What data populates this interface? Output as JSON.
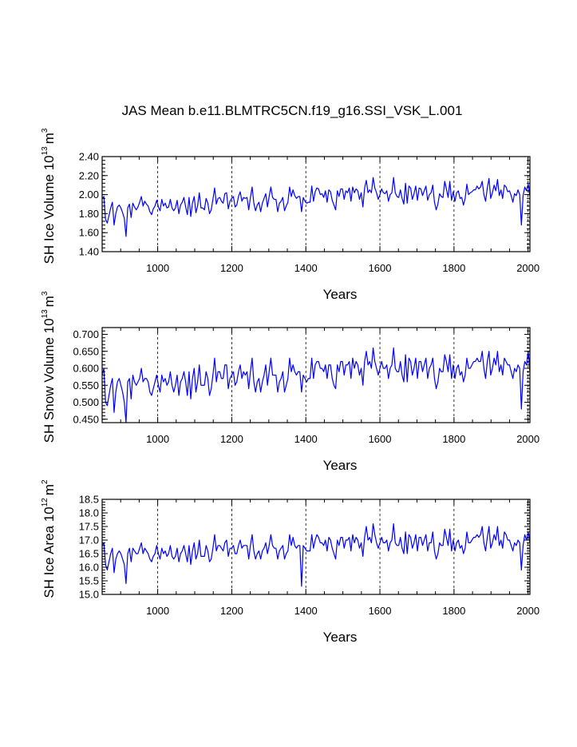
{
  "title": "JAS Mean b.e11.BLMTRC5CN.f19_g16.SSI_VSK_L.001",
  "chart_data": [
    {
      "type": "line",
      "ylabel": "SH Ice Volume",
      "ylabel_unit_base": "10",
      "ylabel_unit_exp": "13",
      "ylabel_unit_m": "m",
      "ylabel_unit_m_exp": "3",
      "xlabel": "Years",
      "xlim": [
        850,
        2005
      ],
      "ylim": [
        1.4,
        2.4
      ],
      "xticks": [
        "1000",
        "1200",
        "1400",
        "1600",
        "1800",
        "2000"
      ],
      "yticks": [
        "1.40",
        "1.60",
        "1.80",
        "2.00",
        "2.20",
        "2.40"
      ],
      "grid_x": true,
      "series_color": "#0000ff",
      "series": [
        {
          "name": "SH Ice Volume",
          "x_start": 850,
          "x_end": 2005,
          "values": [
            1.96,
            1.98,
            1.74,
            1.7,
            1.78,
            1.86,
            1.92,
            1.68,
            1.8,
            1.87,
            1.89,
            1.86,
            1.81,
            1.75,
            1.56,
            1.86,
            1.9,
            1.76,
            1.91,
            1.87,
            1.84,
            1.87,
            1.92,
            1.98,
            1.88,
            1.93,
            1.9,
            1.88,
            1.82,
            1.79,
            1.85,
            1.88,
            1.94,
            1.87,
            1.83,
            1.95,
            1.88,
            1.91,
            1.86,
            1.87,
            1.95,
            1.86,
            1.83,
            1.86,
            1.94,
            1.8,
            1.89,
            1.92,
            1.97,
            1.87,
            1.79,
            1.97,
            1.77,
            1.91,
            1.98,
            1.81,
            1.88,
            2.02,
            1.86,
            1.86,
            1.84,
            1.96,
            1.91,
            1.8,
            1.84,
            1.95,
            2.07,
            1.9,
            1.96,
            1.97,
            1.93,
            1.91,
            2.01,
            2.02,
            1.85,
            1.93,
            1.96,
            1.98,
            1.87,
            1.89,
            1.98,
            2.03,
            1.93,
            1.97,
            1.96,
            1.97,
            1.84,
            1.97,
            2.08,
            1.91,
            1.83,
            1.89,
            1.92,
            1.82,
            1.91,
            1.96,
            2.01,
            1.87,
            1.98,
            2.08,
            1.97,
            1.95,
            1.95,
            1.82,
            1.91,
            1.93,
            1.97,
            1.83,
            1.88,
            1.92,
            2.08,
            1.98,
            2.05,
            1.99,
            1.96,
            1.98,
            1.98,
            1.82,
            1.97,
            1.93,
            1.91,
            1.92,
            1.92,
            2.09,
            1.93,
            2.03,
            2.07,
            2.06,
            2.0,
            2.01,
            1.97,
            2.04,
            1.92,
            2.05,
            2.03,
            1.94,
            1.89,
            1.84,
            2.04,
            1.98,
            2.06,
            2.06,
            1.95,
            2.04,
            2.02,
            2.07,
            1.93,
            2.08,
            2.02,
            2.06,
            2.04,
            1.95,
            2.02,
            1.87,
            2.07,
            2.15,
            2.02,
            2.05,
            2.02,
            2.18,
            2.07,
            2.02,
            1.95,
            2.0,
            2.06,
            2.02,
            2.01,
            2.04,
            1.93,
            2.0,
            2.02,
            2.18,
            2.02,
            1.98,
            1.97,
            2.05,
            1.96,
            1.9,
            2.12,
            1.91,
            2.09,
            2.07,
            1.95,
            2.01,
            2.09,
            1.94,
            2.07,
            2.06,
            1.99,
            2.04,
            2.09,
            1.94,
            2.0,
            2.02,
            2.1,
            1.92,
            1.84,
            1.9,
            2.01,
            1.98,
            1.97,
            2.14,
            2.06,
            1.97,
            2.14,
            1.94,
            2.03,
            1.93,
            2.02,
            2.04,
            1.96,
            1.97,
            1.89,
            1.96,
            2.11,
            2.0,
            2.02,
            2.03,
            2.05,
            2.05,
            2.09,
            2.06,
            2.08,
            2.14,
            2.0,
            1.93,
            2.07,
            2.17,
            1.96,
            2.02,
            2.1,
            2.04,
            2.16,
            1.99,
            2.05,
            1.96,
            2.1,
            2.08,
            2.03,
            2.04,
            1.99,
            1.92,
            2.01,
            1.99,
            2.05,
            2.0,
            1.68,
            1.99,
            2.08,
            2.04,
            2.11,
            1.98
          ]
        }
      ]
    },
    {
      "type": "line",
      "ylabel": "SH Snow Volume",
      "ylabel_unit_base": "10",
      "ylabel_unit_exp": "13",
      "ylabel_unit_m": "m",
      "ylabel_unit_m_exp": "3",
      "xlabel": "Years",
      "xlim": [
        850,
        2005
      ],
      "ylim": [
        0.44,
        0.72
      ],
      "xticks": [
        "1000",
        "1200",
        "1400",
        "1600",
        "1800",
        "2000"
      ],
      "yticks": [
        "0.450",
        "0.500",
        "0.550",
        "0.600",
        "0.650",
        "0.700"
      ],
      "grid_x": true,
      "series_color": "#0000ff",
      "series": [
        {
          "name": "SH Snow Volume",
          "x_start": 850,
          "x_end": 2005,
          "values": [
            0.58,
            0.6,
            0.5,
            0.49,
            0.52,
            0.55,
            0.57,
            0.47,
            0.53,
            0.56,
            0.57,
            0.55,
            0.53,
            0.5,
            0.44,
            0.56,
            0.57,
            0.51,
            0.58,
            0.56,
            0.55,
            0.56,
            0.57,
            0.6,
            0.56,
            0.57,
            0.57,
            0.56,
            0.53,
            0.52,
            0.54,
            0.56,
            0.58,
            0.55,
            0.53,
            0.58,
            0.56,
            0.57,
            0.55,
            0.56,
            0.59,
            0.55,
            0.53,
            0.55,
            0.58,
            0.52,
            0.56,
            0.57,
            0.59,
            0.56,
            0.52,
            0.59,
            0.51,
            0.57,
            0.6,
            0.53,
            0.56,
            0.61,
            0.55,
            0.55,
            0.55,
            0.59,
            0.57,
            0.52,
            0.54,
            0.58,
            0.63,
            0.56,
            0.59,
            0.59,
            0.57,
            0.57,
            0.61,
            0.61,
            0.54,
            0.57,
            0.58,
            0.59,
            0.55,
            0.56,
            0.59,
            0.61,
            0.57,
            0.59,
            0.58,
            0.59,
            0.54,
            0.59,
            0.63,
            0.56,
            0.53,
            0.56,
            0.57,
            0.53,
            0.56,
            0.58,
            0.61,
            0.55,
            0.59,
            0.63,
            0.58,
            0.58,
            0.58,
            0.53,
            0.56,
            0.57,
            0.59,
            0.53,
            0.55,
            0.57,
            0.63,
            0.59,
            0.61,
            0.59,
            0.58,
            0.59,
            0.59,
            0.53,
            0.58,
            0.57,
            0.56,
            0.57,
            0.57,
            0.63,
            0.57,
            0.61,
            0.62,
            0.62,
            0.6,
            0.6,
            0.59,
            0.61,
            0.57,
            0.61,
            0.61,
            0.57,
            0.55,
            0.54,
            0.61,
            0.59,
            0.62,
            0.62,
            0.58,
            0.61,
            0.61,
            0.62,
            0.57,
            0.63,
            0.6,
            0.62,
            0.61,
            0.58,
            0.6,
            0.55,
            0.62,
            0.65,
            0.61,
            0.62,
            0.6,
            0.66,
            0.62,
            0.6,
            0.58,
            0.6,
            0.62,
            0.6,
            0.6,
            0.61,
            0.57,
            0.6,
            0.61,
            0.66,
            0.6,
            0.59,
            0.59,
            0.62,
            0.58,
            0.56,
            0.64,
            0.56,
            0.63,
            0.62,
            0.58,
            0.6,
            0.63,
            0.57,
            0.62,
            0.62,
            0.59,
            0.61,
            0.63,
            0.57,
            0.6,
            0.61,
            0.63,
            0.57,
            0.54,
            0.56,
            0.6,
            0.59,
            0.59,
            0.64,
            0.62,
            0.59,
            0.64,
            0.57,
            0.61,
            0.57,
            0.6,
            0.61,
            0.58,
            0.59,
            0.56,
            0.58,
            0.63,
            0.6,
            0.6,
            0.61,
            0.62,
            0.62,
            0.63,
            0.62,
            0.62,
            0.65,
            0.6,
            0.57,
            0.62,
            0.65,
            0.58,
            0.6,
            0.63,
            0.61,
            0.65,
            0.59,
            0.61,
            0.58,
            0.63,
            0.62,
            0.61,
            0.61,
            0.59,
            0.57,
            0.6,
            0.59,
            0.61,
            0.6,
            0.48,
            0.59,
            0.62,
            0.61,
            0.65,
            0.59
          ]
        }
      ]
    },
    {
      "type": "line",
      "ylabel": "SH Ice Area",
      "ylabel_unit_base": "10",
      "ylabel_unit_exp": "12",
      "ylabel_unit_m": "m",
      "ylabel_unit_m_exp": "2",
      "xlabel": "Years",
      "xlim": [
        850,
        2005
      ],
      "ylim": [
        15.0,
        18.5
      ],
      "xticks": [
        "1000",
        "1200",
        "1400",
        "1600",
        "1800",
        "2000"
      ],
      "yticks": [
        "15.0",
        "15.5",
        "16.0",
        "16.5",
        "17.0",
        "17.5",
        "18.0",
        "18.5"
      ],
      "grid_x": true,
      "series_color": "#0000ff",
      "series": [
        {
          "name": "SH Ice Area",
          "x_start": 850,
          "x_end": 2005,
          "values": [
            16.8,
            16.9,
            16.1,
            15.9,
            16.2,
            16.5,
            16.7,
            15.8,
            16.3,
            16.5,
            16.6,
            16.5,
            16.3,
            16.1,
            15.4,
            16.5,
            16.7,
            16.2,
            16.7,
            16.6,
            16.5,
            16.5,
            16.7,
            16.9,
            16.5,
            16.7,
            16.6,
            16.5,
            16.3,
            16.2,
            16.4,
            16.5,
            16.8,
            16.5,
            16.3,
            16.7,
            16.5,
            16.6,
            16.4,
            16.5,
            16.8,
            16.4,
            16.3,
            16.4,
            16.7,
            16.2,
            16.5,
            16.6,
            16.8,
            16.5,
            16.2,
            16.8,
            16.1,
            16.6,
            16.9,
            16.3,
            16.5,
            17.0,
            16.4,
            16.4,
            16.4,
            16.8,
            16.6,
            16.2,
            16.3,
            16.7,
            17.2,
            16.6,
            16.8,
            16.8,
            16.7,
            16.6,
            16.9,
            17.0,
            16.4,
            16.7,
            16.7,
            16.8,
            16.5,
            16.5,
            16.8,
            17.0,
            16.7,
            16.8,
            16.8,
            16.8,
            16.3,
            16.8,
            17.2,
            16.6,
            16.3,
            16.5,
            16.6,
            16.3,
            16.6,
            16.7,
            16.9,
            16.5,
            16.8,
            17.2,
            16.8,
            16.7,
            16.7,
            16.3,
            16.6,
            16.7,
            16.8,
            16.3,
            16.5,
            16.6,
            17.2,
            16.8,
            17.1,
            16.8,
            16.7,
            16.8,
            16.8,
            15.3,
            16.8,
            16.7,
            16.6,
            16.6,
            16.6,
            17.2,
            16.7,
            17.0,
            17.2,
            17.1,
            16.9,
            16.9,
            16.8,
            17.0,
            16.6,
            17.1,
            17.0,
            16.7,
            16.5,
            16.3,
            17.0,
            16.8,
            17.1,
            17.1,
            16.7,
            17.0,
            17.0,
            17.1,
            16.6,
            17.2,
            16.9,
            17.1,
            17.0,
            16.7,
            16.9,
            16.4,
            17.1,
            17.5,
            17.0,
            17.1,
            16.9,
            17.6,
            17.2,
            16.9,
            16.7,
            16.9,
            17.1,
            16.9,
            16.9,
            17.0,
            16.6,
            16.9,
            17.0,
            17.6,
            16.9,
            16.8,
            16.8,
            17.1,
            16.7,
            16.5,
            17.3,
            16.5,
            17.2,
            17.1,
            16.7,
            16.9,
            17.2,
            16.6,
            17.1,
            17.1,
            16.8,
            17.0,
            17.2,
            16.6,
            16.9,
            16.9,
            17.3,
            16.6,
            16.3,
            16.5,
            16.9,
            16.8,
            16.8,
            17.4,
            17.1,
            16.8,
            17.4,
            16.6,
            17.0,
            16.6,
            16.9,
            17.0,
            16.7,
            16.8,
            16.5,
            16.7,
            17.3,
            16.9,
            16.9,
            17.0,
            17.1,
            17.1,
            17.2,
            17.1,
            17.2,
            17.5,
            16.9,
            16.6,
            17.1,
            17.5,
            16.7,
            16.9,
            17.2,
            17.0,
            17.5,
            16.8,
            17.0,
            16.7,
            17.3,
            17.2,
            17.0,
            17.0,
            16.8,
            16.6,
            16.9,
            16.8,
            17.0,
            16.9,
            15.9,
            16.8,
            17.2,
            17.0,
            17.3,
            16.9
          ]
        }
      ]
    }
  ]
}
